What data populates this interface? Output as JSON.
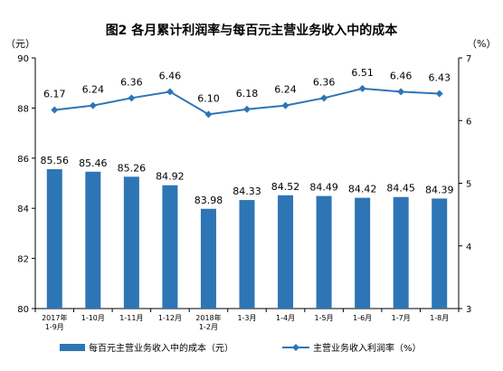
{
  "chart_data": {
    "type": "bar",
    "title": "图2  各月累计利润率与每百元主营业务收入中的成本",
    "categories": [
      [
        "2017年",
        "1-9月"
      ],
      [
        "1-10月"
      ],
      [
        "1-11月"
      ],
      [
        "1-12月"
      ],
      [
        "2018年",
        "1-2月"
      ],
      [
        "1-3月"
      ],
      [
        "1-4月"
      ],
      [
        "1-5月"
      ],
      [
        "1-6月"
      ],
      [
        "1-7月"
      ],
      [
        "1-8月"
      ]
    ],
    "left_axis": {
      "unit": "（元）",
      "ylim": [
        80,
        90
      ],
      "ticks": [
        "80",
        "82",
        "84",
        "86",
        "88",
        "90"
      ]
    },
    "right_axis": {
      "unit": "（%）",
      "ylim": [
        3,
        7
      ],
      "ticks": [
        "3",
        "4",
        "5",
        "6",
        "7"
      ]
    },
    "series": [
      {
        "name": "每百元主营业务收入中的成本（元）",
        "kind": "bar",
        "axis": "left",
        "color": "#2e75b6",
        "values": [
          85.56,
          85.46,
          85.26,
          84.92,
          83.98,
          84.33,
          84.52,
          84.49,
          84.42,
          84.45,
          84.39
        ],
        "labels": [
          "85.56",
          "85.46",
          "85.26",
          "84.92",
          "83.98",
          "84.33",
          "84.52",
          "84.49",
          "84.42",
          "84.45",
          "84.39"
        ]
      },
      {
        "name": "主营业务收入利润率（%）",
        "kind": "line",
        "axis": "right",
        "color": "#2e75b6",
        "values": [
          6.17,
          6.24,
          6.36,
          6.46,
          6.1,
          6.18,
          6.24,
          6.36,
          6.51,
          6.46,
          6.43
        ],
        "labels": [
          "6.17",
          "6.24",
          "6.36",
          "6.46",
          "6.10",
          "6.18",
          "6.24",
          "6.36",
          "6.51",
          "6.46",
          "6.43"
        ]
      }
    ],
    "legend": "bottom",
    "grid": false
  }
}
